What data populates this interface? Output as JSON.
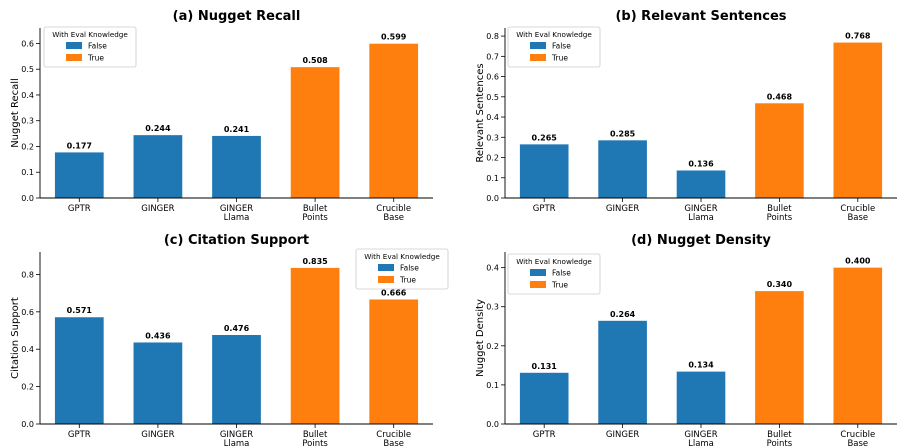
{
  "legend": {
    "title": "With Eval Knowledge",
    "entries": [
      {
        "label": "False",
        "color": "#1f77b4"
      },
      {
        "label": "True",
        "color": "#ff7f0e"
      }
    ]
  },
  "chart_data": [
    {
      "type": "bar",
      "title": "(a) Nugget Recall",
      "xlabel": "",
      "ylabel": "Nugget Recall",
      "categories": [
        "GPTR",
        "GINGER",
        "GINGER\nLlama",
        "Bullet\nPoints",
        "Crucible\nBase"
      ],
      "values": [
        0.177,
        0.244,
        0.241,
        0.508,
        0.599
      ],
      "value_labels": [
        "0.177",
        "0.244",
        "0.241",
        "0.508",
        "0.599"
      ],
      "eval_knowledge": [
        false,
        false,
        false,
        true,
        true
      ],
      "ylim": [
        0,
        0.66
      ],
      "yticks": [
        0.0,
        0.1,
        0.2,
        0.3,
        0.4,
        0.5,
        0.6
      ],
      "ytick_labels": [
        "0.0",
        "0.1",
        "0.2",
        "0.3",
        "0.4",
        "0.5",
        "0.6"
      ],
      "legend": "top-left",
      "grid": false
    },
    {
      "type": "bar",
      "title": "(b) Relevant Sentences",
      "xlabel": "",
      "ylabel": "Relevant Sentences",
      "categories": [
        "GPTR",
        "GINGER",
        "GINGER\nLlama",
        "Bullet\nPoints",
        "Crucible\nBase"
      ],
      "values": [
        0.265,
        0.285,
        0.136,
        0.468,
        0.768
      ],
      "value_labels": [
        "0.265",
        "0.285",
        "0.136",
        "0.468",
        "0.768"
      ],
      "eval_knowledge": [
        false,
        false,
        false,
        true,
        true
      ],
      "ylim": [
        0,
        0.84
      ],
      "yticks": [
        0.0,
        0.1,
        0.2,
        0.3,
        0.4,
        0.5,
        0.6,
        0.7,
        0.8
      ],
      "ytick_labels": [
        "0.0",
        "0.1",
        "0.2",
        "0.3",
        "0.4",
        "0.5",
        "0.6",
        "0.7",
        "0.8"
      ],
      "legend": "top-left",
      "grid": false
    },
    {
      "type": "bar",
      "title": "(c) Citation Support",
      "xlabel": "",
      "ylabel": "Citation Support",
      "categories": [
        "GPTR",
        "GINGER",
        "GINGER\nLlama",
        "Bullet\nPoints",
        "Crucible\nBase"
      ],
      "values": [
        0.571,
        0.436,
        0.476,
        0.835,
        0.666
      ],
      "value_labels": [
        "0.571",
        "0.436",
        "0.476",
        "0.835",
        "0.666"
      ],
      "eval_knowledge": [
        false,
        false,
        false,
        true,
        true
      ],
      "ylim": [
        0,
        0.92
      ],
      "yticks": [
        0.0,
        0.2,
        0.4,
        0.6,
        0.8
      ],
      "ytick_labels": [
        "0.0",
        "0.2",
        "0.4",
        "0.6",
        "0.8"
      ],
      "legend": "top-right",
      "grid": false
    },
    {
      "type": "bar",
      "title": "(d) Nugget Density",
      "xlabel": "",
      "ylabel": "Nugget Density",
      "categories": [
        "GPTR",
        "GINGER",
        "GINGER\nLlama",
        "Bullet\nPoints",
        "Crucible\nBase"
      ],
      "values": [
        0.131,
        0.264,
        0.134,
        0.34,
        0.4
      ],
      "value_labels": [
        "0.131",
        "0.264",
        "0.134",
        "0.340",
        "0.400"
      ],
      "eval_knowledge": [
        false,
        false,
        false,
        true,
        true
      ],
      "ylim": [
        0,
        0.44
      ],
      "yticks": [
        0.0,
        0.1,
        0.2,
        0.3,
        0.4
      ],
      "ytick_labels": [
        "0.0",
        "0.1",
        "0.2",
        "0.3",
        "0.4"
      ],
      "legend": "top-left",
      "grid": false
    }
  ]
}
